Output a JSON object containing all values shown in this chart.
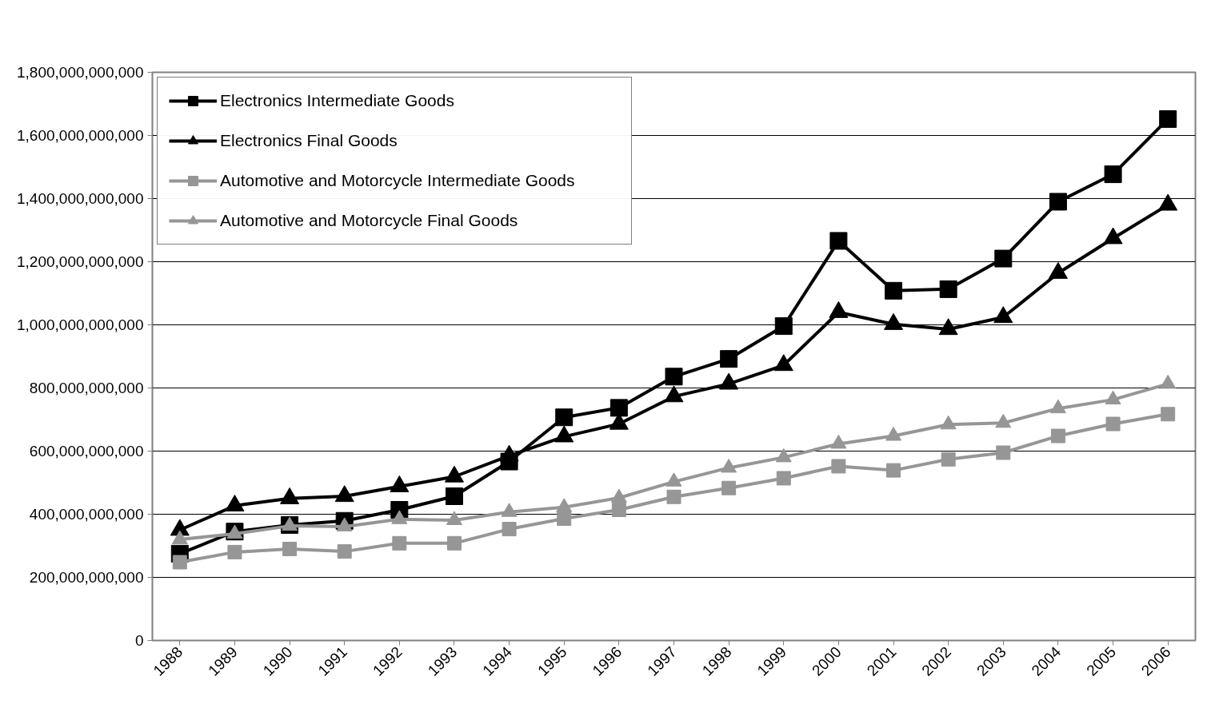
{
  "chart_data": {
    "type": "line",
    "categories": [
      "1988",
      "1989",
      "1990",
      "1991",
      "1992",
      "1993",
      "1994",
      "1995",
      "1996",
      "1997",
      "1998",
      "1999",
      "2000",
      "2001",
      "2002",
      "2003",
      "2004",
      "2005",
      "2006"
    ],
    "series": [
      {
        "name": "Electronics Intermediate Goods",
        "color": "#000000",
        "marker": "square",
        "values": [
          275000000000,
          345000000000,
          366000000000,
          379000000000,
          414000000000,
          457000000000,
          567000000000,
          707000000000,
          737000000000,
          836000000000,
          892000000000,
          996000000000,
          1266000000000,
          1108000000000,
          1113000000000,
          1210000000000,
          1390000000000,
          1477000000000,
          1652000000000
        ]
      },
      {
        "name": "Electronics Final Goods",
        "color": "#000000",
        "marker": "triangle",
        "values": [
          350000000000,
          427000000000,
          450000000000,
          457000000000,
          488000000000,
          519000000000,
          585000000000,
          646000000000,
          686000000000,
          773000000000,
          813000000000,
          872000000000,
          1040000000000,
          1002000000000,
          986000000000,
          1024000000000,
          1164000000000,
          1274000000000,
          1380000000000
        ]
      },
      {
        "name": "Automotive and Motorcycle Intermediate Goods",
        "color": "#969696",
        "marker": "square",
        "values": [
          248000000000,
          280000000000,
          290000000000,
          282000000000,
          308000000000,
          308000000000,
          353000000000,
          386000000000,
          414000000000,
          455000000000,
          483000000000,
          514000000000,
          552000000000,
          539000000000,
          574000000000,
          595000000000,
          648000000000,
          686000000000,
          717000000000
        ]
      },
      {
        "name": "Automotive and Motorcycle Final Goods",
        "color": "#969696",
        "marker": "triangle",
        "values": [
          320000000000,
          338000000000,
          363000000000,
          361000000000,
          384000000000,
          381000000000,
          407000000000,
          422000000000,
          452000000000,
          503000000000,
          547000000000,
          580000000000,
          623000000000,
          648000000000,
          684000000000,
          689000000000,
          735000000000,
          763000000000,
          813000000000
        ]
      }
    ],
    "ylim": [
      0,
      1800000000000
    ],
    "yticks": [
      {
        "value": 0,
        "label": "0"
      },
      {
        "value": 200000000000,
        "label": "200,000,000,000"
      },
      {
        "value": 400000000000,
        "label": "400,000,000,000"
      },
      {
        "value": 600000000000,
        "label": "600,000,000,000"
      },
      {
        "value": 800000000000,
        "label": "800,000,000,000"
      },
      {
        "value": 1000000000000,
        "label": "1,000,000,000,000"
      },
      {
        "value": 1200000000000,
        "label": "1,200,000,000,000"
      },
      {
        "value": 1400000000000,
        "label": "1,400,000,000,000"
      },
      {
        "value": 1600000000000,
        "label": "1,600,000,000,000"
      },
      {
        "value": 1800000000000,
        "label": "1,800,000,000,000"
      }
    ],
    "grid": "y",
    "legend": "top left",
    "line_style": "solid"
  }
}
